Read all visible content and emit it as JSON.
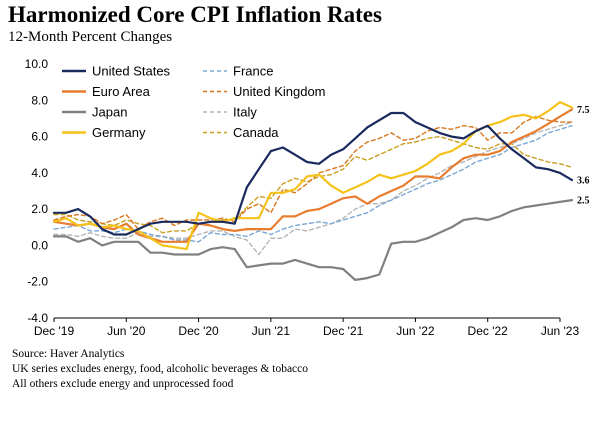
{
  "chart_data": {
    "type": "line",
    "title": "Harmonized Core CPI Inflation Rates",
    "subtitle": "12-Month Percent Changes",
    "xlabel": "",
    "ylabel": "",
    "ylim": [
      -4.0,
      10.0
    ],
    "yticks": [
      "10.0",
      "8.0",
      "6.0",
      "4.0",
      "2.0",
      "0.0",
      "-2.0",
      "-4.0"
    ],
    "xticks": [
      "Dec '19",
      "Jun '20",
      "Dec '20",
      "Jun '21",
      "Dec '21",
      "Jun '22",
      "Dec '22",
      "Jun '23"
    ],
    "x_start": "2019-12",
    "x_end": "2023-06",
    "legend_position": "top-left",
    "end_labels": [
      {
        "label": "7.5",
        "value": 7.5
      },
      {
        "label": "3.6",
        "value": 3.6
      },
      {
        "label": "2.5",
        "value": 2.5
      }
    ],
    "series": [
      {
        "name": "United States",
        "color": "#1b2a5e",
        "style": "solid",
        "values": [
          1.8,
          1.8,
          2.0,
          1.6,
          0.9,
          0.6,
          0.6,
          0.9,
          1.2,
          1.3,
          1.3,
          1.3,
          1.2,
          1.3,
          1.3,
          1.2,
          3.2,
          4.2,
          5.2,
          5.4,
          5.0,
          4.6,
          4.5,
          5.0,
          5.3,
          5.9,
          6.5,
          6.9,
          7.3,
          7.3,
          6.8,
          6.5,
          6.2,
          6.0,
          5.9,
          6.3,
          6.6,
          5.9,
          5.3,
          4.8,
          4.3,
          4.2,
          4.0,
          3.6
        ]
      },
      {
        "name": "France",
        "color": "#7ba7d4",
        "style": "dashed",
        "values": [
          0.9,
          1.0,
          1.1,
          0.8,
          0.8,
          0.7,
          0.9,
          0.8,
          0.6,
          0.5,
          0.3,
          0.3,
          0.2,
          0.7,
          0.6,
          0.6,
          0.5,
          0.8,
          0.6,
          0.9,
          1.1,
          1.2,
          1.3,
          1.2,
          1.4,
          1.6,
          1.8,
          2.2,
          2.5,
          2.8,
          3.1,
          3.4,
          3.6,
          3.9,
          4.2,
          4.6,
          4.8,
          5.0,
          5.4,
          5.6,
          5.8,
          6.2,
          6.4,
          6.6
        ]
      },
      {
        "name": "Euro Area",
        "color": "#e87d2f",
        "style": "solid",
        "values": [
          1.3,
          1.2,
          1.1,
          1.2,
          1.0,
          0.9,
          1.2,
          0.6,
          0.4,
          0.2,
          0.2,
          0.2,
          1.2,
          1.1,
          0.9,
          0.8,
          0.9,
          0.9,
          0.9,
          1.6,
          1.6,
          1.9,
          2.0,
          2.3,
          2.6,
          2.7,
          2.3,
          2.7,
          3.0,
          3.3,
          3.8,
          3.8,
          3.7,
          4.3,
          4.8,
          5.0,
          5.0,
          5.2,
          5.7,
          6.0,
          6.3,
          6.7,
          7.1,
          7.5
        ]
      },
      {
        "name": "United Kingdom",
        "color": "#d9771f",
        "style": "dashed",
        "values": [
          1.4,
          1.6,
          1.7,
          1.6,
          1.2,
          1.4,
          1.7,
          0.9,
          1.3,
          1.5,
          1.1,
          1.4,
          1.4,
          1.4,
          1.5,
          1.3,
          2.0,
          2.3,
          1.8,
          3.1,
          2.9,
          3.4,
          4.0,
          4.2,
          4.4,
          5.2,
          5.7,
          5.9,
          6.2,
          5.8,
          5.9,
          6.3,
          6.5,
          6.4,
          6.6,
          6.5,
          5.8,
          6.2,
          6.2,
          6.8,
          7.1,
          6.9,
          6.8,
          6.8
        ]
      },
      {
        "name": "Japan",
        "color": "#808080",
        "style": "solid",
        "values": [
          0.5,
          0.5,
          0.2,
          0.4,
          0.0,
          0.2,
          0.2,
          0.2,
          -0.4,
          -0.4,
          -0.5,
          -0.5,
          -0.5,
          -0.2,
          -0.1,
          -0.2,
          -1.2,
          -1.1,
          -1.0,
          -1.0,
          -0.8,
          -1.0,
          -1.2,
          -1.2,
          -1.3,
          -1.9,
          -1.8,
          -1.6,
          0.1,
          0.2,
          0.2,
          0.4,
          0.7,
          1.0,
          1.4,
          1.5,
          1.4,
          1.6,
          1.9,
          2.1,
          2.2,
          2.3,
          2.4,
          2.5
        ]
      },
      {
        "name": "Italy",
        "color": "#b5b5b5",
        "style": "dashed",
        "values": [
          0.6,
          0.6,
          0.5,
          0.7,
          0.5,
          0.4,
          0.4,
          0.7,
          0.5,
          0.5,
          0.4,
          0.4,
          0.6,
          0.8,
          0.8,
          0.5,
          0.3,
          -0.5,
          0.4,
          0.4,
          0.9,
          0.8,
          1.0,
          1.2,
          1.5,
          2.0,
          2.3,
          2.3,
          2.5,
          3.0,
          3.3,
          3.7,
          4.0,
          4.4,
          4.6,
          4.9,
          5.2,
          5.4,
          5.6,
          5.9,
          6.2,
          6.4,
          6.6,
          6.8
        ]
      },
      {
        "name": "Germany",
        "color": "#f5c21b",
        "style": "solid",
        "values": [
          1.3,
          1.5,
          1.1,
          1.2,
          1.0,
          1.1,
          0.9,
          0.8,
          0.4,
          0.0,
          -0.1,
          -0.2,
          1.8,
          1.5,
          1.3,
          1.5,
          1.5,
          1.5,
          2.9,
          2.9,
          3.1,
          3.8,
          3.9,
          3.3,
          2.9,
          3.2,
          3.5,
          3.9,
          3.7,
          3.9,
          4.1,
          4.5,
          5.0,
          5.2,
          5.6,
          6.3,
          6.6,
          6.8,
          7.1,
          7.2,
          7.0,
          7.4,
          7.9,
          7.6
        ]
      },
      {
        "name": "Canada",
        "color": "#c9a020",
        "style": "dashed",
        "values": [
          1.7,
          1.7,
          1.4,
          1.3,
          1.2,
          1.1,
          1.4,
          1.2,
          1.1,
          0.7,
          0.8,
          0.8,
          1.2,
          1.3,
          1.4,
          1.4,
          2.1,
          2.7,
          2.6,
          3.4,
          3.7,
          3.5,
          3.8,
          3.9,
          4.2,
          4.9,
          4.7,
          5.0,
          5.3,
          5.6,
          5.7,
          5.9,
          6.0,
          5.8,
          5.6,
          5.4,
          5.3,
          5.6,
          5.6,
          5.0,
          4.8,
          4.6,
          4.5,
          4.3
        ]
      }
    ]
  },
  "notes": {
    "source": "Source: Haver Analytics",
    "note1": "UK series excludes energy, food, alcoholic beverages & tobacco",
    "note2": "All others exclude energy and unprocessed food"
  }
}
